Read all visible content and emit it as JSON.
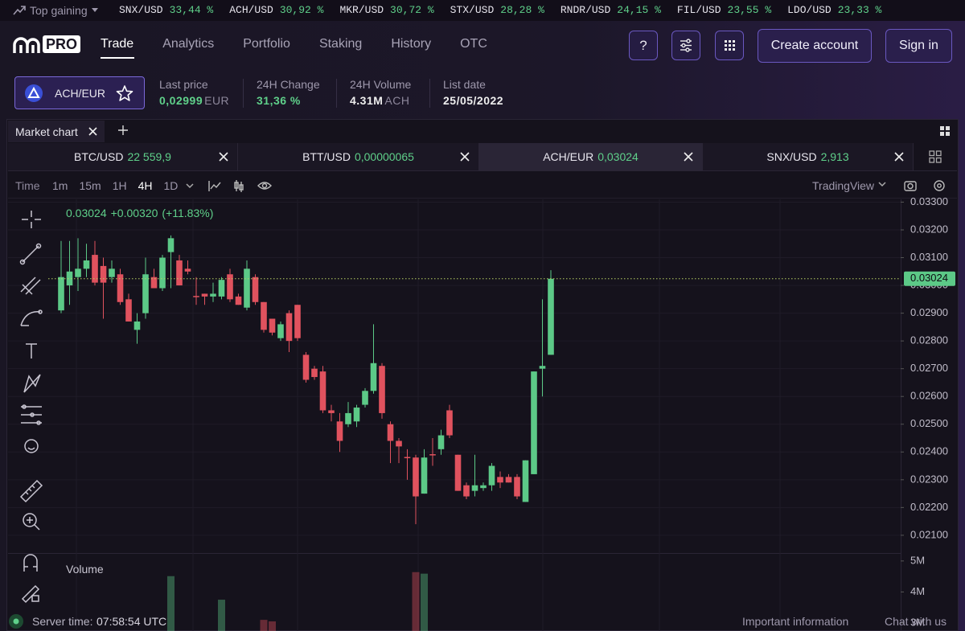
{
  "ticker": {
    "label": "Top gaining",
    "items": [
      {
        "symbol": "SNX/USD",
        "change": "33,44 %"
      },
      {
        "symbol": "ACH/USD",
        "change": "30,92 %"
      },
      {
        "symbol": "MKR/USD",
        "change": "30,72 %"
      },
      {
        "symbol": "STX/USD",
        "change": "28,28 %"
      },
      {
        "symbol": "RNDR/USD",
        "change": "24,15 %"
      },
      {
        "symbol": "FIL/USD",
        "change": "23,55 %"
      },
      {
        "symbol": "LDO/USD",
        "change": "23,33 %"
      }
    ]
  },
  "nav": {
    "logo": "PRO",
    "tabs": [
      "Trade",
      "Analytics",
      "Portfolio",
      "Staking",
      "History",
      "OTC"
    ],
    "help": "?",
    "create_account": "Create account",
    "sign_in": "Sign in"
  },
  "market": {
    "pair": "ACH/EUR",
    "stats": [
      {
        "label": "Last price",
        "value": "0,02999",
        "unit": "EUR"
      },
      {
        "label": "24H Change",
        "value": "31,36 %"
      },
      {
        "label": "24H Volume",
        "value": "4.31M",
        "unit": "ACH"
      },
      {
        "label": "List date",
        "value": "25/05/2022"
      }
    ]
  },
  "panel": {
    "tab": "Market chart"
  },
  "pair_tabs": [
    {
      "pair": "BTC/USD",
      "price": "22 559,9"
    },
    {
      "pair": "BTT/USD",
      "price": "0,00000065"
    },
    {
      "pair": "ACH/EUR",
      "price": "0,03024"
    },
    {
      "pair": "SNX/USD",
      "price": "2,913"
    }
  ],
  "toolbar": {
    "time": "Time",
    "intervals": [
      "1m",
      "15m",
      "1H",
      "4H",
      "1D"
    ],
    "provider": "TradingView"
  },
  "chart": {
    "type": "candlestick",
    "legend": {
      "change": "+0.00320",
      "change_pct": "(+11.83%)"
    },
    "up_color": "#5cc987",
    "down_color": "#e0525e",
    "open": [
      0.0291,
      0.03,
      0.0303,
      0.0306,
      0.0311,
      0.0307,
      0.0303,
      0.0304,
      0.0295,
      0.0284,
      0.029,
      0.0303,
      0.0299,
      0.0312,
      0.0309,
      0.0306,
      0.02962,
      0.0297,
      0.0296,
      0.0296,
      0.0304,
      0.0296,
      0.0292,
      0.0303,
      0.0294,
      0.0288,
      0.0281,
      0.029,
      0.0293,
      0.0275,
      0.027,
      0.0269,
      0.0255,
      0.0251,
      0.025,
      0.0251,
      0.0257,
      0.0262,
      0.0271,
      0.025,
      0.0244,
      0.02382,
      0.0238,
      0.0225,
      0.02392,
      0.0241,
      0.0255,
      0.0239,
      0.0228,
      0.0226,
      0.0227,
      0.0228,
      0.0231,
      0.0231,
      0.0231,
      0.0222,
      0.0232,
      0.027,
      0.0275
    ],
    "high": [
      0.0316,
      0.0316,
      0.0317,
      0.0315,
      0.0316,
      0.031,
      0.0309,
      0.0306,
      0.0297,
      0.029,
      0.031,
      0.0306,
      0.0311,
      0.0318,
      0.0311,
      0.0309,
      0.0303,
      0.0297,
      0.0301,
      0.0303,
      0.0306,
      0.0297,
      0.0309,
      0.0304,
      0.0294,
      0.0288,
      0.0287,
      0.0291,
      0.0293,
      0.0276,
      0.0271,
      0.0271,
      0.0257,
      0.0254,
      0.0258,
      0.0257,
      0.0263,
      0.0286,
      0.0272,
      0.0251,
      0.0245,
      0.0241,
      0.0239,
      0.0241,
      0.0245,
      0.0248,
      0.0257,
      0.0239,
      0.0229,
      0.0239,
      0.0229,
      0.0236,
      0.0233,
      0.0232,
      0.0232,
      0.0237,
      0.0269,
      0.0295,
      0.03055
    ],
    "low": [
      0.029,
      0.0293,
      0.0298,
      0.0303,
      0.03,
      0.0288,
      0.0301,
      0.0293,
      0.0287,
      0.0279,
      0.0288,
      0.0299,
      0.0298,
      0.0299,
      0.03,
      0.0304,
      0.0293,
      0.0293,
      0.0294,
      0.0295,
      0.0294,
      0.0293,
      0.0291,
      0.0293,
      0.0283,
      0.0282,
      0.028,
      0.0276,
      0.028,
      0.0265,
      0.0266,
      0.0254,
      0.0251,
      0.024,
      0.0249,
      0.0249,
      0.0256,
      0.0261,
      0.0252,
      0.0236,
      0.0236,
      0.023,
      0.0214,
      0.0225,
      0.0235,
      0.0239,
      0.0245,
      0.0226,
      0.0223,
      0.0224,
      0.0226,
      0.0226,
      0.0227,
      0.0229,
      0.0223,
      0.0222,
      0.0232,
      0.026,
      0.0275
    ],
    "close": [
      0.0303,
      0.0305,
      0.0306,
      0.0309,
      0.0301,
      0.0301,
      0.0306,
      0.0294,
      0.0287,
      0.0287,
      0.0304,
      0.0299,
      0.031,
      0.0317,
      0.03,
      0.0305,
      0.02958,
      0.0296,
      0.0297,
      0.0302,
      0.0295,
      0.0293,
      0.0306,
      0.0294,
      0.0284,
      0.0283,
      0.0286,
      0.028,
      0.0281,
      0.0266,
      0.0267,
      0.0255,
      0.0254,
      0.0244,
      0.0254,
      0.0256,
      0.0262,
      0.0272,
      0.0254,
      0.0244,
      0.0242,
      0.02378,
      0.0224,
      0.0238,
      0.02388,
      0.0246,
      0.0246,
      0.0226,
      0.0224,
      0.0228,
      0.0228,
      0.0235,
      0.0229,
      0.0229,
      0.0224,
      0.0237,
      0.0269,
      0.0271,
      0.03024
    ],
    "ylim": [
      0.02036,
      0.0331
    ],
    "yticks": [
      {
        "value": 0.033,
        "label": "0.03300"
      },
      {
        "value": 0.032,
        "label": "0.03200"
      },
      {
        "value": 0.031,
        "label": "0.03100"
      },
      {
        "value": 0.03,
        "label": "0.03000"
      },
      {
        "value": 0.029,
        "label": "0.02900"
      },
      {
        "value": 0.028,
        "label": "0.02800"
      },
      {
        "value": 0.027,
        "label": "0.02700"
      },
      {
        "value": 0.026,
        "label": "0.02600"
      },
      {
        "value": 0.025,
        "label": "0.02500"
      },
      {
        "value": 0.024,
        "label": "0.02400"
      },
      {
        "value": 0.023,
        "label": "0.02300"
      },
      {
        "value": 0.022,
        "label": "0.02200"
      },
      {
        "value": 0.021,
        "label": "0.02100"
      }
    ],
    "volume_label": "Volume",
    "volume": [
      null,
      null,
      null,
      null,
      null,
      null,
      null,
      null,
      null,
      null,
      null,
      null,
      null,
      4510000,
      null,
      null,
      null,
      null,
      null,
      3750000,
      null,
      null,
      null,
      null,
      3100000,
      3050000,
      null,
      null,
      null,
      null,
      null,
      null,
      null,
      null,
      null,
      null,
      null,
      null,
      null,
      null,
      null,
      null,
      4640000,
      4590000,
      null,
      null,
      null,
      null,
      null,
      null,
      null,
      null,
      null,
      null,
      null,
      null,
      null,
      null,
      null
    ],
    "volume_ylim": [
      2740000,
      5256000
    ],
    "volume_yticks": [
      {
        "value": 5000000,
        "label": "5M"
      },
      {
        "value": 4000000,
        "label": "4M"
      },
      {
        "value": 3000000,
        "label": "3M"
      }
    ]
  },
  "footer": {
    "server_time_label": "Server time:",
    "server_time": "07:58:54 UTC",
    "important": "Important information",
    "chat": "Chat with us"
  }
}
